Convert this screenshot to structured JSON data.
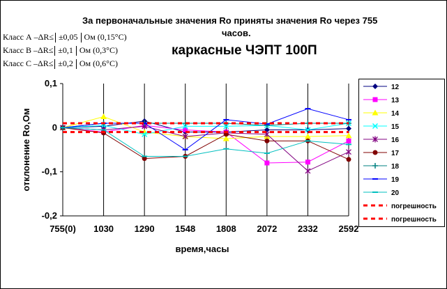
{
  "title_line1": "За первоначальные значения Ro приняты значения Ro через 755",
  "title_line2": "часов.",
  "title_main": "каркасные ЧЭПТ 100П",
  "classes": [
    {
      "label": "Класс А –",
      "dr": "ΔR≤",
      "tol": "±0,05",
      "unit": "Ом (0,15°С)"
    },
    {
      "label": "Класс В –",
      "dr": "ΔR≤",
      "tol": "±0,1",
      "unit": "Ом (0,3°С)"
    },
    {
      "label": "Класс С –",
      "dr": "ΔR≤",
      "tol": "±0,2",
      "unit": "Ом (0,6°С)"
    }
  ],
  "chart_data": {
    "type": "line",
    "xlabel": "время,часы",
    "ylabel": "отклонение Ro,Ом",
    "ylim": [
      -0.2,
      0.1
    ],
    "yticks": [
      0.1,
      0,
      -0.1,
      -0.2
    ],
    "ytick_labels": [
      "0,1",
      "0",
      "-0,1",
      "-0,2"
    ],
    "categories": [
      "755(0)",
      "1030",
      "1290",
      "1548",
      "1808",
      "2072",
      "2332",
      "2592"
    ],
    "grid": "vertical",
    "legend_position": "right",
    "series": [
      {
        "name": "12",
        "color": "#000080",
        "marker": "diamond",
        "values": [
          0,
          0.003,
          0.015,
          -0.01,
          -0.01,
          -0.005,
          -0.005,
          -0.002
        ]
      },
      {
        "name": "13",
        "color": "#ff00ff",
        "marker": "square",
        "values": [
          0,
          -0.01,
          0.005,
          -0.005,
          -0.01,
          -0.08,
          -0.078,
          -0.03
        ]
      },
      {
        "name": "14",
        "color": "#ffff00",
        "marker": "triangle",
        "values": [
          0,
          0.025,
          -0.01,
          -0.02,
          -0.025,
          -0.02,
          -0.02,
          -0.018
        ]
      },
      {
        "name": "15",
        "color": "#00ffff",
        "marker": "x",
        "values": [
          0,
          0.005,
          -0.015,
          0.003,
          0.003,
          0.005,
          -0.005,
          0.01
        ]
      },
      {
        "name": "16",
        "color": "#800080",
        "marker": "star",
        "values": [
          0,
          -0.005,
          0.003,
          -0.02,
          -0.012,
          -0.015,
          -0.098,
          -0.055
        ]
      },
      {
        "name": "17",
        "color": "#800000",
        "marker": "circle",
        "values": [
          0,
          -0.012,
          -0.07,
          -0.065,
          -0.015,
          -0.03,
          -0.03,
          -0.072
        ]
      },
      {
        "name": "18",
        "color": "#008080",
        "marker": "plus",
        "values": [
          0,
          0.01,
          0.01,
          0.01,
          0.01,
          0.005,
          0.01,
          0.01
        ]
      },
      {
        "name": "19",
        "color": "#0000ff",
        "marker": "dash",
        "values": [
          0,
          0.01,
          0.01,
          -0.05,
          0.018,
          0.008,
          0.043,
          0.018
        ]
      },
      {
        "name": "20",
        "color": "#00bfbf",
        "marker": "dash",
        "values": [
          0,
          -0.005,
          -0.065,
          -0.065,
          -0.048,
          -0.058,
          -0.03,
          -0.038
        ]
      },
      {
        "name": "погрешность",
        "color": "#ff0000",
        "marker": "none",
        "dashed": true,
        "values": [
          0.01,
          0.01,
          0.01,
          0.01,
          0.01,
          0.01,
          0.01,
          0.01
        ]
      },
      {
        "name": "погрешность",
        "color": "#ff0000",
        "marker": "none",
        "dashed": true,
        "values": [
          -0.01,
          -0.01,
          -0.01,
          -0.01,
          -0.01,
          -0.01,
          -0.01,
          -0.01
        ]
      }
    ]
  }
}
